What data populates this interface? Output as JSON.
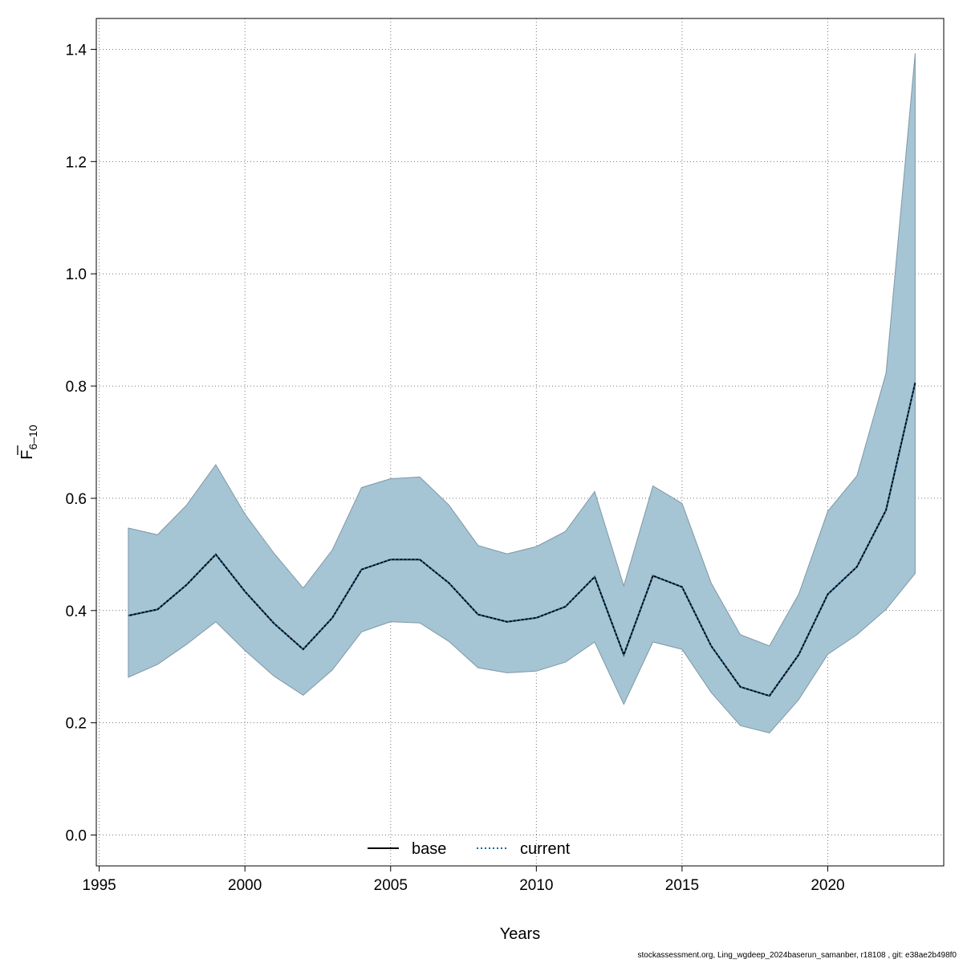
{
  "chart_data": {
    "type": "line",
    "xlabel": "Years",
    "ylabel": {
      "main": "F",
      "subscript": "6–10",
      "overline": true
    },
    "x_ticks": [
      "1995",
      "2000",
      "2005",
      "2010",
      "2015",
      "2020"
    ],
    "y_ticks": [
      "0.0",
      "0.2",
      "0.4",
      "0.6",
      "0.8",
      "1.0",
      "1.2",
      "1.4"
    ],
    "xlim": [
      1994.9,
      2023.98
    ],
    "ylim": [
      -0.055,
      1.455
    ],
    "grid": true,
    "legend": {
      "position": "bottom-center",
      "entries": [
        {
          "label": "base",
          "color": "#000000",
          "style": "solid"
        },
        {
          "label": "current",
          "color": "#1f6b9b",
          "style": "dotted"
        }
      ]
    },
    "band": {
      "color": "#a5c4d4",
      "edge_color": "#7f98a6"
    },
    "x": [
      1996,
      1997,
      1998,
      1999,
      2000,
      2001,
      2002,
      2003,
      2004,
      2005,
      2006,
      2007,
      2008,
      2009,
      2010,
      2011,
      2012,
      2013,
      2014,
      2015,
      2016,
      2017,
      2018,
      2019,
      2020,
      2021,
      2022,
      2023
    ],
    "series": [
      {
        "name": "base",
        "values": [
          0.391,
          0.402,
          0.446,
          0.5,
          0.434,
          0.377,
          0.331,
          0.387,
          0.473,
          0.491,
          0.491,
          0.449,
          0.393,
          0.38,
          0.387,
          0.407,
          0.46,
          0.321,
          0.462,
          0.442,
          0.337,
          0.264,
          0.248,
          0.321,
          0.429,
          0.478,
          0.579,
          0.806
        ]
      },
      {
        "name": "current",
        "values": [
          0.391,
          0.402,
          0.446,
          0.5,
          0.434,
          0.377,
          0.331,
          0.387,
          0.473,
          0.491,
          0.491,
          0.449,
          0.393,
          0.38,
          0.387,
          0.407,
          0.46,
          0.321,
          0.462,
          0.442,
          0.337,
          0.264,
          0.248,
          0.321,
          0.429,
          0.478,
          0.579,
          0.806
        ]
      }
    ],
    "lower": [
      0.281,
      0.304,
      0.34,
      0.38,
      0.329,
      0.283,
      0.249,
      0.294,
      0.362,
      0.38,
      0.378,
      0.345,
      0.298,
      0.289,
      0.292,
      0.308,
      0.344,
      0.233,
      0.344,
      0.331,
      0.254,
      0.195,
      0.182,
      0.241,
      0.322,
      0.357,
      0.402,
      0.466
    ],
    "upper": [
      0.547,
      0.535,
      0.588,
      0.66,
      0.572,
      0.502,
      0.44,
      0.508,
      0.619,
      0.635,
      0.638,
      0.588,
      0.516,
      0.501,
      0.514,
      0.541,
      0.612,
      0.444,
      0.622,
      0.591,
      0.449,
      0.357,
      0.337,
      0.429,
      0.577,
      0.64,
      0.823,
      1.393
    ]
  },
  "footnote": "stockassessment.org, Ling_wgdeep_2024baserun_samanber, r18108 , git: e38ae2b498f0"
}
